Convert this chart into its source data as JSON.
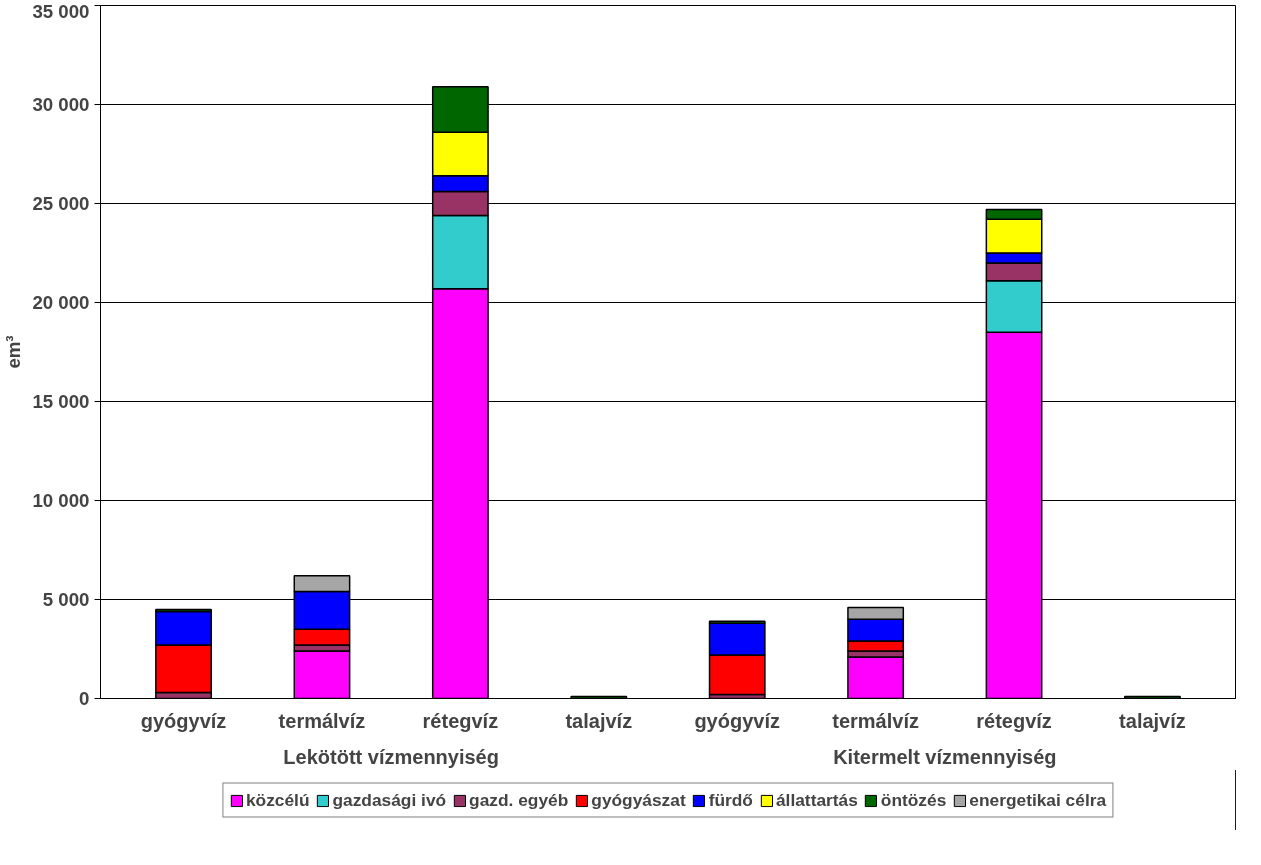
{
  "chart_data": {
    "type": "bar",
    "stacked": true,
    "ylabel": "em³",
    "categories": [
      "gyógyvíz",
      "termálvíz",
      "rétegvíz",
      "talajvíz",
      "gyógyvíz",
      "termálvíz",
      "rétegvíz",
      "talajvíz"
    ],
    "series": [
      {
        "name": "közcélú",
        "color": "#ff00ff",
        "values": [
          null,
          2400,
          20700,
          null,
          null,
          2100,
          18500,
          null
        ]
      },
      {
        "name": "gazdasági ivó",
        "color": "#33cccc",
        "values": [
          null,
          null,
          3700,
          null,
          null,
          null,
          2600,
          null
        ]
      },
      {
        "name": "gazd. egyéb",
        "color": "#993366",
        "values": [
          300,
          300,
          1200,
          null,
          200,
          300,
          900,
          null
        ]
      },
      {
        "name": "gyógyászat",
        "color": "#ff0000",
        "values": [
          2400,
          800,
          null,
          null,
          2000,
          500,
          null,
          null
        ]
      },
      {
        "name": "fürdő",
        "color": "#0000ff",
        "values": [
          1700,
          1900,
          800,
          null,
          1600,
          1100,
          500,
          null
        ]
      },
      {
        "name": "állattartás",
        "color": "#ffff00",
        "values": [
          null,
          null,
          2200,
          null,
          null,
          null,
          1700,
          null
        ]
      },
      {
        "name": "öntözés",
        "color": "#006600",
        "values": [
          100,
          null,
          2300,
          100,
          100,
          null,
          500,
          100
        ]
      },
      {
        "name": "energetikai célra",
        "color": "#a6a6a6",
        "values": [
          null,
          800,
          null,
          null,
          null,
          600,
          null,
          null
        ]
      }
    ],
    "ylim": [
      0,
      35000
    ],
    "yticks": [
      0,
      {
        "value": 5000,
        "label": "5 000"
      },
      {
        "value": 10000,
        "label": "10 000"
      },
      {
        "value": 15000,
        "label": "15 000"
      },
      {
        "value": 20000,
        "label": "20 000"
      },
      {
        "value": 25000,
        "label": "25 000"
      },
      {
        "value": 30000,
        "label": "30 000"
      },
      {
        "value": 35000,
        "label": "35 000"
      }
    ],
    "grid": "y",
    "legend": "bottom",
    "annotations": [
      "Lekötött vízmennyiség",
      "Kitermelt vízmennyiség"
    ]
  }
}
